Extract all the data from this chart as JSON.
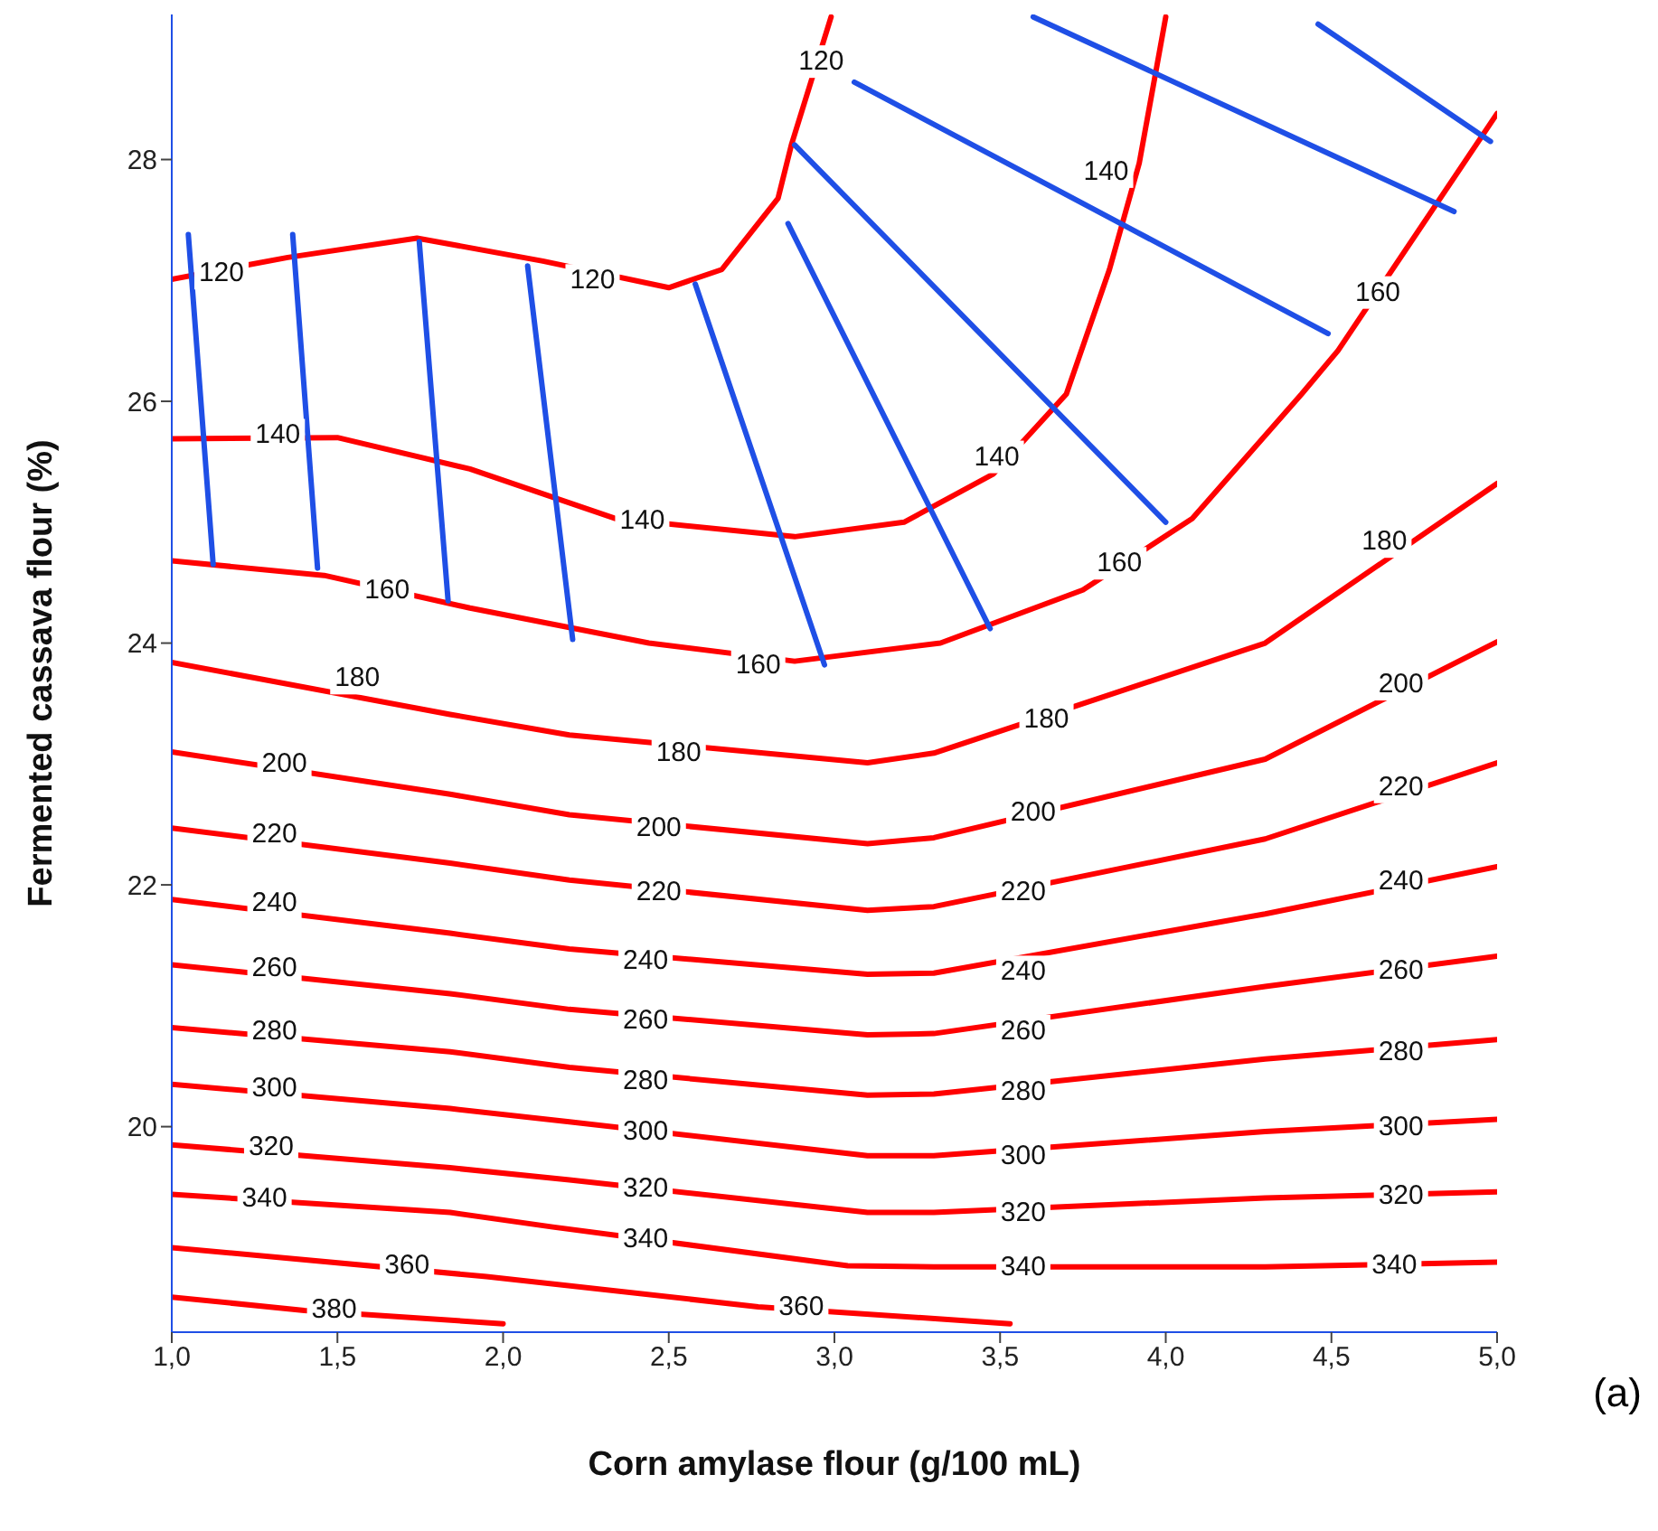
{
  "chart_data": {
    "type": "line",
    "xlabel": "Corn amylase flour (g/100 mL)",
    "ylabel": "Fermented cassava flour (%)",
    "xlim": [
      1,
      5
    ],
    "ylim": [
      18.3,
      29.2
    ],
    "xticks": [
      {
        "value": 1,
        "label": "1,0"
      },
      {
        "value": 1.5,
        "label": "1,5"
      },
      {
        "value": 2,
        "label": "2,0"
      },
      {
        "value": 2.5,
        "label": "2,5"
      },
      {
        "value": 3,
        "label": "3,0"
      },
      {
        "value": 3.5,
        "label": "3,5"
      },
      {
        "value": 4,
        "label": "4,0"
      },
      {
        "value": 4.5,
        "label": "4,5"
      },
      {
        "value": 5,
        "label": "5,0"
      }
    ],
    "yticks": [
      20,
      22,
      24,
      26,
      28
    ],
    "marker": "none",
    "line_style": "solid",
    "series": [
      {
        "color": "#ff0000",
        "x": [
          1.0,
          1.4,
          2.0
        ],
        "values": [
          18.59,
          18.48,
          18.37
        ]
      },
      {
        "color": "#ff0000",
        "x": [
          1.0,
          1.95,
          2.77,
          3.53
        ],
        "values": [
          19.0,
          18.76,
          18.51,
          18.37
        ]
      },
      {
        "color": "#ff0000",
        "x": [
          1.0,
          1.84,
          2.15,
          3.04,
          3.3,
          4.3,
          5.0
        ],
        "values": [
          19.44,
          19.29,
          19.17,
          18.85,
          18.84,
          18.84,
          18.88
        ]
      },
      {
        "color": "#ff0000",
        "x": [
          1.0,
          1.84,
          2.2,
          3.1,
          3.3,
          4.3,
          5.0
        ],
        "values": [
          19.85,
          19.66,
          19.56,
          19.29,
          19.29,
          19.41,
          19.46
        ]
      },
      {
        "color": "#ff0000",
        "x": [
          1.0,
          1.84,
          2.2,
          3.1,
          3.3,
          4.3,
          5.0
        ],
        "values": [
          20.35,
          20.15,
          20.04,
          19.76,
          19.76,
          19.96,
          20.06
        ]
      },
      {
        "color": "#ff0000",
        "x": [
          1.0,
          1.84,
          2.2,
          3.1,
          3.3,
          4.3,
          5.0
        ],
        "values": [
          20.82,
          20.62,
          20.49,
          20.26,
          20.27,
          20.56,
          20.72
        ]
      },
      {
        "color": "#ff0000",
        "x": [
          1.0,
          1.84,
          2.2,
          3.1,
          3.3,
          4.3,
          5.0
        ],
        "values": [
          21.34,
          21.1,
          20.97,
          20.76,
          20.77,
          21.16,
          21.41
        ]
      },
      {
        "color": "#ff0000",
        "x": [
          1.0,
          1.84,
          2.2,
          3.1,
          3.3,
          4.3,
          5.0
        ],
        "values": [
          21.88,
          21.6,
          21.47,
          21.26,
          21.27,
          21.76,
          22.15
        ]
      },
      {
        "color": "#ff0000",
        "x": [
          1.0,
          1.84,
          2.2,
          3.1,
          3.3,
          4.3,
          5.0
        ],
        "values": [
          22.47,
          22.18,
          22.04,
          21.79,
          21.82,
          22.38,
          23.01
        ]
      },
      {
        "color": "#ff0000",
        "x": [
          1.0,
          1.84,
          2.2,
          3.1,
          3.3,
          4.3,
          5.0
        ],
        "values": [
          23.1,
          22.75,
          22.58,
          22.34,
          22.39,
          23.04,
          24.01
        ]
      },
      {
        "color": "#ff0000",
        "x": [
          1.0,
          1.84,
          2.2,
          3.1,
          3.3,
          4.3,
          5.0
        ],
        "values": [
          23.84,
          23.41,
          23.24,
          23.01,
          23.09,
          24.0,
          25.32
        ]
      },
      {
        "color": "#ff0000",
        "x": [
          1.0,
          1.46,
          1.9,
          2.44,
          2.88,
          3.32,
          3.75,
          4.08,
          4.41,
          4.52,
          5.0
        ],
        "values": [
          24.68,
          24.56,
          24.29,
          24.0,
          23.85,
          24.0,
          24.44,
          25.03,
          26.06,
          26.42,
          28.38
        ]
      },
      {
        "color": "#ff0000",
        "x": [
          1.0,
          1.5,
          1.9,
          2.34,
          2.88,
          3.21,
          3.48,
          3.7,
          3.83,
          3.92,
          4.0
        ],
        "values": [
          25.69,
          25.7,
          25.44,
          25.03,
          24.88,
          25.0,
          25.4,
          26.06,
          27.09,
          27.97,
          29.18
        ]
      },
      {
        "color": "#ff0000",
        "x": [
          1.0,
          1.35,
          1.74,
          2.12,
          2.5,
          2.66,
          2.83,
          2.87,
          2.99
        ],
        "values": [
          27.01,
          27.19,
          27.35,
          27.16,
          26.94,
          27.09,
          27.68,
          28.12,
          29.18
        ]
      },
      {
        "color": "#1f4fe6",
        "x": [
          1.05,
          1.125
        ],
        "values": [
          27.38,
          24.65
        ]
      },
      {
        "color": "#1f4fe6",
        "x": [
          1.365,
          1.44
        ],
        "values": [
          27.38,
          24.62
        ]
      },
      {
        "color": "#1f4fe6",
        "x": [
          1.747,
          1.834
        ],
        "values": [
          27.32,
          24.35
        ]
      },
      {
        "color": "#1f4fe6",
        "x": [
          2.074,
          2.21
        ],
        "values": [
          27.12,
          24.03
        ]
      },
      {
        "color": "#1f4fe6",
        "x": [
          2.58,
          2.97
        ],
        "values": [
          26.97,
          23.82
        ]
      },
      {
        "color": "#1f4fe6",
        "x": [
          2.86,
          3.47
        ],
        "values": [
          27.47,
          24.12
        ]
      },
      {
        "color": "#1f4fe6",
        "x": [
          2.88,
          4.0
        ],
        "values": [
          28.12,
          25.0
        ]
      },
      {
        "color": "#1f4fe6",
        "x": [
          3.06,
          4.49
        ],
        "values": [
          28.64,
          26.56
        ]
      },
      {
        "color": "#1f4fe6",
        "x": [
          3.6,
          4.87
        ],
        "values": [
          29.18,
          27.57
        ]
      },
      {
        "color": "#1f4fe6",
        "x": [
          4.46,
          4.98
        ],
        "values": [
          29.12,
          28.15
        ]
      }
    ],
    "annotations": [
      {
        "text": "380",
        "x": 1.49,
        "y": 18.49
      },
      {
        "text": "360",
        "x": 1.71,
        "y": 18.85
      },
      {
        "text": "360",
        "x": 2.9,
        "y": 18.51
      },
      {
        "text": "340",
        "x": 1.28,
        "y": 19.41
      },
      {
        "text": "340",
        "x": 2.43,
        "y": 19.07
      },
      {
        "text": "340",
        "x": 3.57,
        "y": 18.84
      },
      {
        "text": "340",
        "x": 4.69,
        "y": 18.85
      },
      {
        "text": "320",
        "x": 1.3,
        "y": 19.83
      },
      {
        "text": "320",
        "x": 2.43,
        "y": 19.49
      },
      {
        "text": "320",
        "x": 3.57,
        "y": 19.29
      },
      {
        "text": "320",
        "x": 4.71,
        "y": 19.43
      },
      {
        "text": "300",
        "x": 1.31,
        "y": 20.32
      },
      {
        "text": "300",
        "x": 2.43,
        "y": 19.96
      },
      {
        "text": "300",
        "x": 3.57,
        "y": 19.76
      },
      {
        "text": "300",
        "x": 4.71,
        "y": 20.0
      },
      {
        "text": "280",
        "x": 1.31,
        "y": 20.79
      },
      {
        "text": "280",
        "x": 2.43,
        "y": 20.38
      },
      {
        "text": "280",
        "x": 3.57,
        "y": 20.29
      },
      {
        "text": "280",
        "x": 4.71,
        "y": 20.62
      },
      {
        "text": "260",
        "x": 1.31,
        "y": 21.31
      },
      {
        "text": "260",
        "x": 2.43,
        "y": 20.88
      },
      {
        "text": "260",
        "x": 3.57,
        "y": 20.79
      },
      {
        "text": "260",
        "x": 4.71,
        "y": 21.29
      },
      {
        "text": "240",
        "x": 1.31,
        "y": 21.85
      },
      {
        "text": "240",
        "x": 2.43,
        "y": 21.37
      },
      {
        "text": "240",
        "x": 3.57,
        "y": 21.28
      },
      {
        "text": "240",
        "x": 4.71,
        "y": 22.03
      },
      {
        "text": "220",
        "x": 1.31,
        "y": 22.42
      },
      {
        "text": "220",
        "x": 2.47,
        "y": 21.94
      },
      {
        "text": "220",
        "x": 3.57,
        "y": 21.94
      },
      {
        "text": "220",
        "x": 4.71,
        "y": 22.81
      },
      {
        "text": "200",
        "x": 1.34,
        "y": 23.0
      },
      {
        "text": "200",
        "x": 2.47,
        "y": 22.47
      },
      {
        "text": "200",
        "x": 3.6,
        "y": 22.6
      },
      {
        "text": "200",
        "x": 4.71,
        "y": 23.66
      },
      {
        "text": "180",
        "x": 1.56,
        "y": 23.71
      },
      {
        "text": "180",
        "x": 2.53,
        "y": 23.09
      },
      {
        "text": "180",
        "x": 3.64,
        "y": 23.37
      },
      {
        "text": "180",
        "x": 4.66,
        "y": 24.84
      },
      {
        "text": "160",
        "x": 1.65,
        "y": 24.44
      },
      {
        "text": "160",
        "x": 2.77,
        "y": 23.82
      },
      {
        "text": "160",
        "x": 3.86,
        "y": 24.66
      },
      {
        "text": "160",
        "x": 4.64,
        "y": 26.9
      },
      {
        "text": "140",
        "x": 1.32,
        "y": 25.72
      },
      {
        "text": "140",
        "x": 2.42,
        "y": 25.01
      },
      {
        "text": "140",
        "x": 3.49,
        "y": 25.54
      },
      {
        "text": "140",
        "x": 3.82,
        "y": 27.9
      },
      {
        "text": "120",
        "x": 1.15,
        "y": 27.06
      },
      {
        "text": "120",
        "x": 2.27,
        "y": 27.0
      },
      {
        "text": "120",
        "x": 2.96,
        "y": 28.81
      },
      "(a)"
    ]
  }
}
